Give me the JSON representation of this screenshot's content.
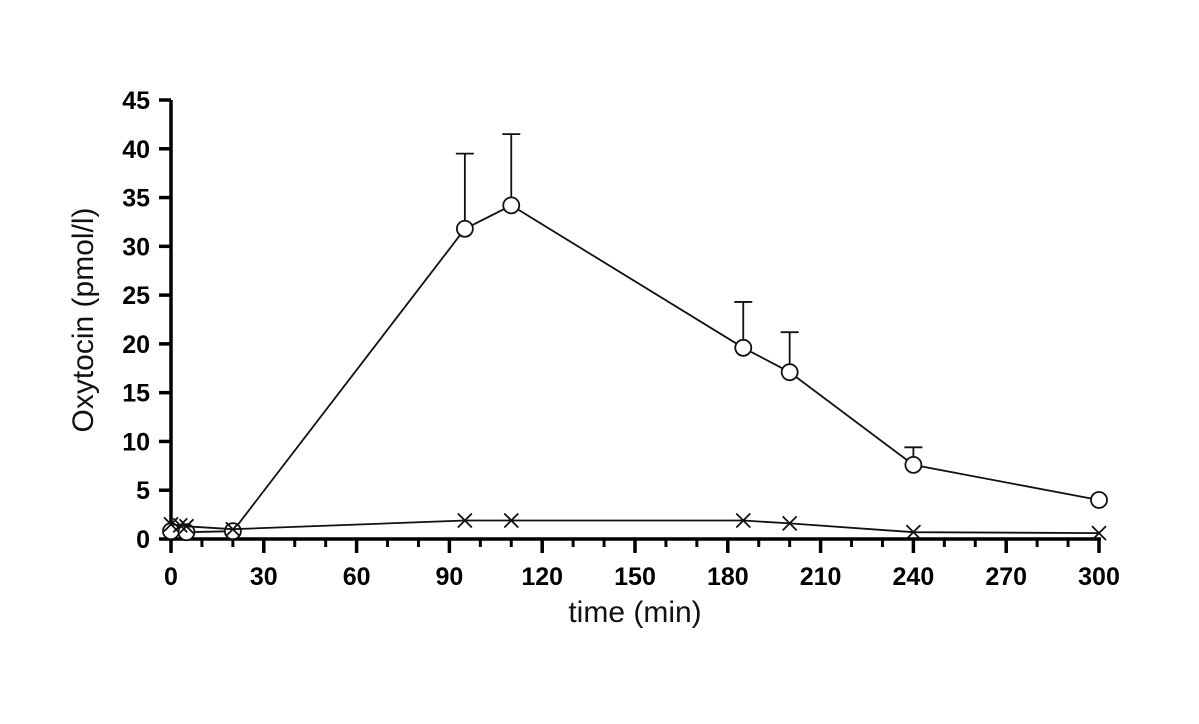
{
  "chart_data": {
    "type": "line",
    "title": "",
    "xlabel": "time (min)",
    "ylabel": "Oxytocin (pmol/l)",
    "xlim": [
      0,
      300
    ],
    "ylim": [
      0,
      45
    ],
    "x_ticks": [
      0,
      30,
      60,
      90,
      120,
      150,
      180,
      210,
      240,
      270,
      300
    ],
    "x_tick_labels": [
      "0",
      "30",
      "60",
      "90",
      "120",
      "150",
      "180",
      "210",
      "240",
      "270",
      "300"
    ],
    "y_ticks": [
      0,
      5,
      10,
      15,
      20,
      25,
      30,
      35,
      40,
      45
    ],
    "y_tick_labels": [
      "0",
      "5",
      "10",
      "15",
      "20",
      "25",
      "30",
      "35",
      "40",
      "45"
    ],
    "grid": false,
    "series": [
      {
        "marker": "circle",
        "x": [
          0,
          5,
          20,
          95,
          110,
          185,
          200,
          240,
          300
        ],
        "y": [
          0.8,
          0.7,
          0.8,
          31.8,
          34.2,
          19.6,
          17.1,
          7.6,
          4.0
        ],
        "error_upper": [
          null,
          null,
          null,
          39.5,
          41.5,
          24.3,
          21.2,
          9.4,
          null
        ]
      },
      {
        "marker": "cross",
        "x": [
          0,
          3,
          5,
          20,
          95,
          110,
          185,
          200,
          240,
          300
        ],
        "y": [
          1.5,
          1.4,
          1.3,
          1.0,
          1.9,
          1.9,
          1.9,
          1.6,
          0.7,
          0.6
        ]
      }
    ]
  }
}
